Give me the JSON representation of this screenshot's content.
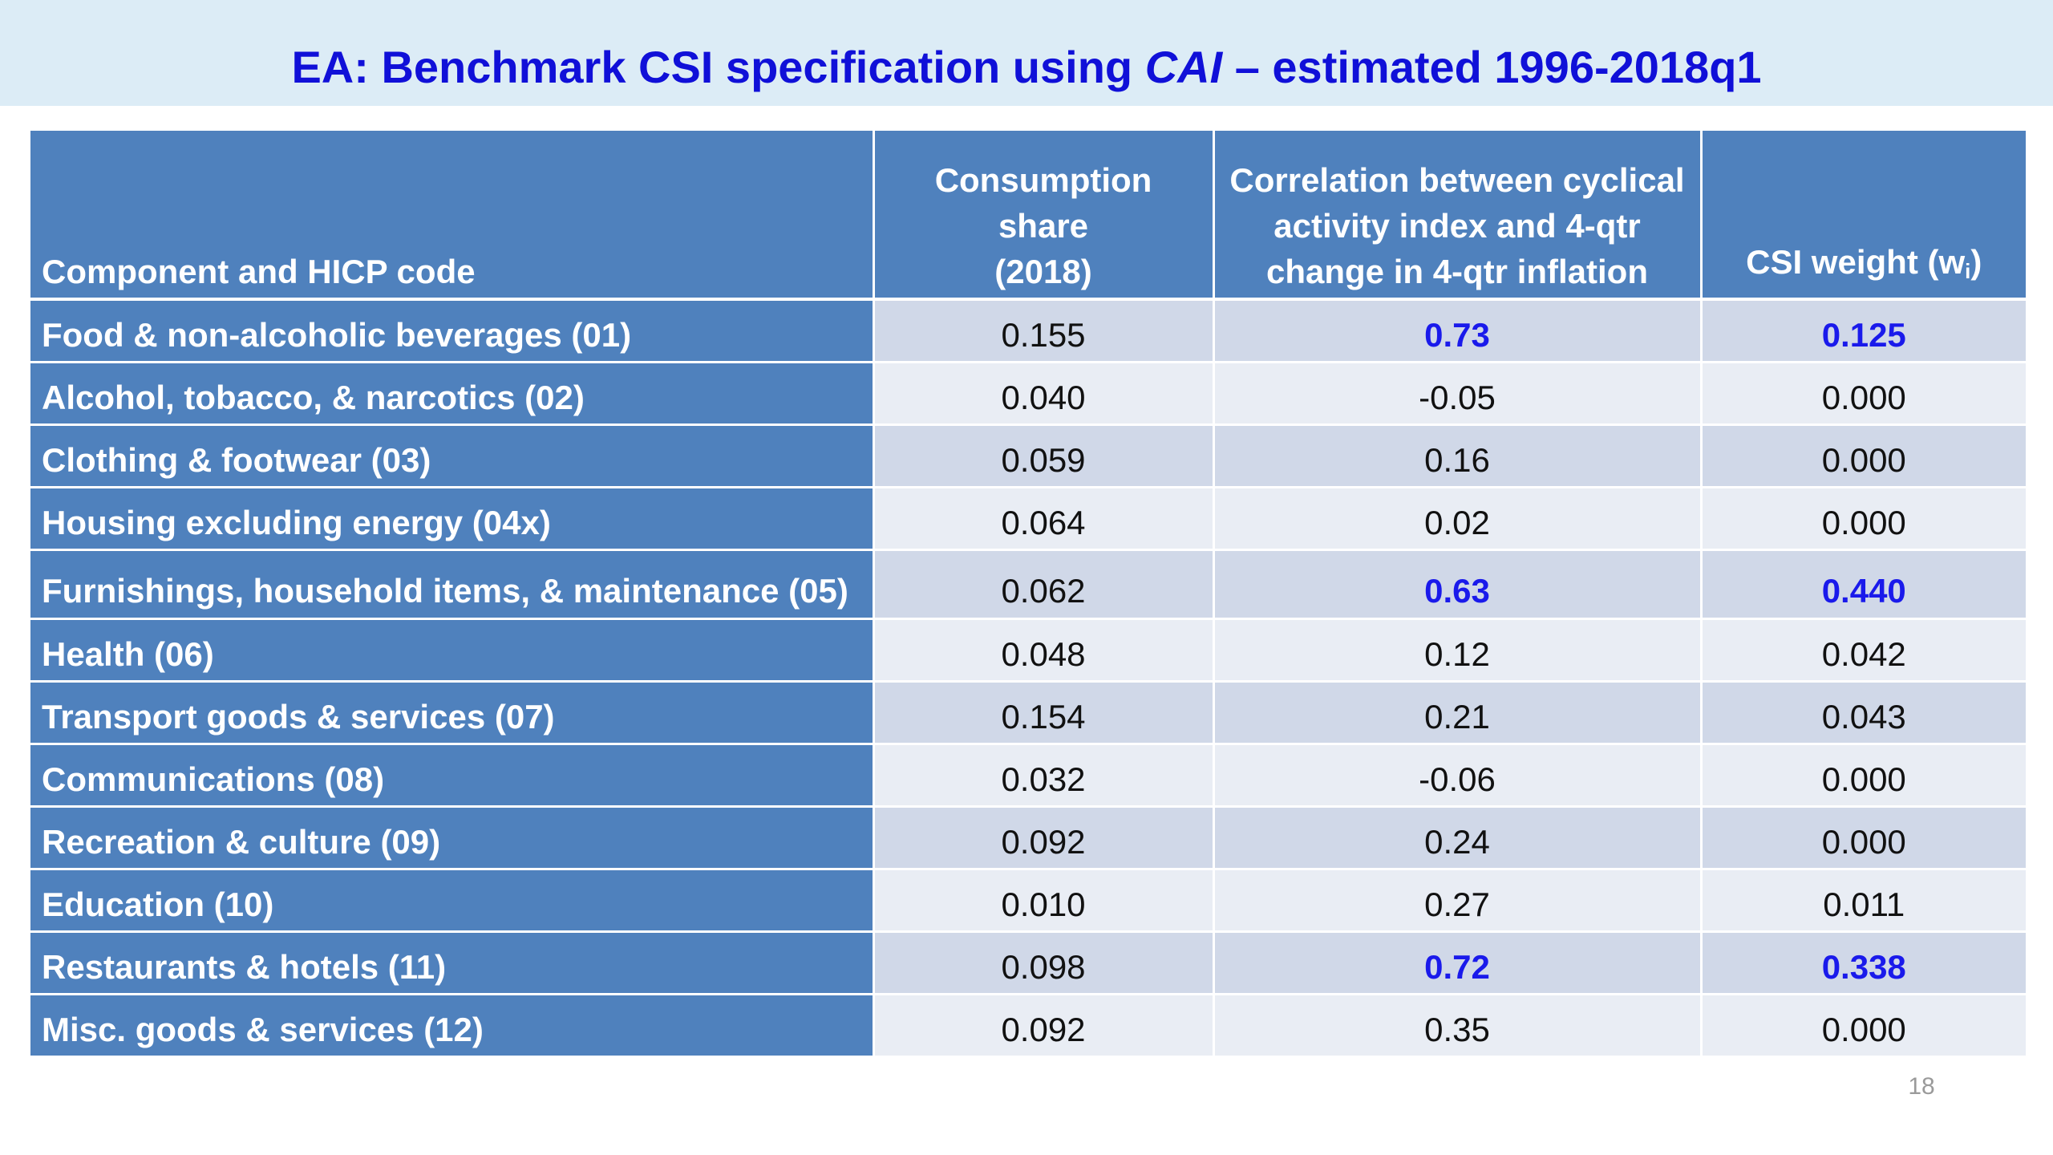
{
  "slide": {
    "title_prefix": "EA: Benchmark CSI specification using ",
    "title_italic": "CAI",
    "title_suffix": " – estimated 1996-2018q1",
    "page_number": "18"
  },
  "table": {
    "headers": {
      "component": "Component and HICP code",
      "share_line1": "Consumption share",
      "share_line2": "(2018)",
      "corr_line1": "Correlation between cyclical",
      "corr_line2": "activity index and 4-qtr",
      "corr_line3": "change in 4-qtr inflation",
      "weight_main": "CSI weight (w",
      "weight_sub": "i",
      "weight_close": ")"
    },
    "rows": [
      {
        "component": "Food & non-alcoholic beverages (01)",
        "share": "0.155",
        "correlation": "0.73",
        "weight": "0.125",
        "highlight": true
      },
      {
        "component": "Alcohol, tobacco, & narcotics (02)",
        "share": "0.040",
        "correlation": "-0.05",
        "weight": "0.000",
        "highlight": false
      },
      {
        "component": "Clothing & footwear (03)",
        "share": "0.059",
        "correlation": "0.16",
        "weight": "0.000",
        "highlight": false
      },
      {
        "component": "Housing excluding energy (04x)",
        "share": "0.064",
        "correlation": "0.02",
        "weight": "0.000",
        "highlight": false
      },
      {
        "component": "Furnishings, household items, & maintenance (05)",
        "share": "0.062",
        "correlation": "0.63",
        "weight": "0.440",
        "highlight": true
      },
      {
        "component": "Health (06)",
        "share": "0.048",
        "correlation": "0.12",
        "weight": "0.042",
        "highlight": false
      },
      {
        "component": "Transport goods & services (07)",
        "share": "0.154",
        "correlation": "0.21",
        "weight": "0.043",
        "highlight": false
      },
      {
        "component": "Communications (08)",
        "share": "0.032",
        "correlation": "-0.06",
        "weight": "0.000",
        "highlight": false
      },
      {
        "component": "Recreation & culture (09)",
        "share": "0.092",
        "correlation": "0.24",
        "weight": "0.000",
        "highlight": false
      },
      {
        "component": "Education (10)",
        "share": "0.010",
        "correlation": "0.27",
        "weight": "0.011",
        "highlight": false
      },
      {
        "component": "Restaurants & hotels (11)",
        "share": "0.098",
        "correlation": "0.72",
        "weight": "0.338",
        "highlight": true
      },
      {
        "component": "Misc. goods & services (12)",
        "share": "0.092",
        "correlation": "0.35",
        "weight": "0.000",
        "highlight": false
      }
    ]
  },
  "colors": {
    "title_text": "#1010d8",
    "title_band": "#dcecf6",
    "header_fill": "#4f81bd",
    "row_dark": "#d0d8e8",
    "row_light": "#e9edf4",
    "highlight_text": "#1a1aeb"
  }
}
